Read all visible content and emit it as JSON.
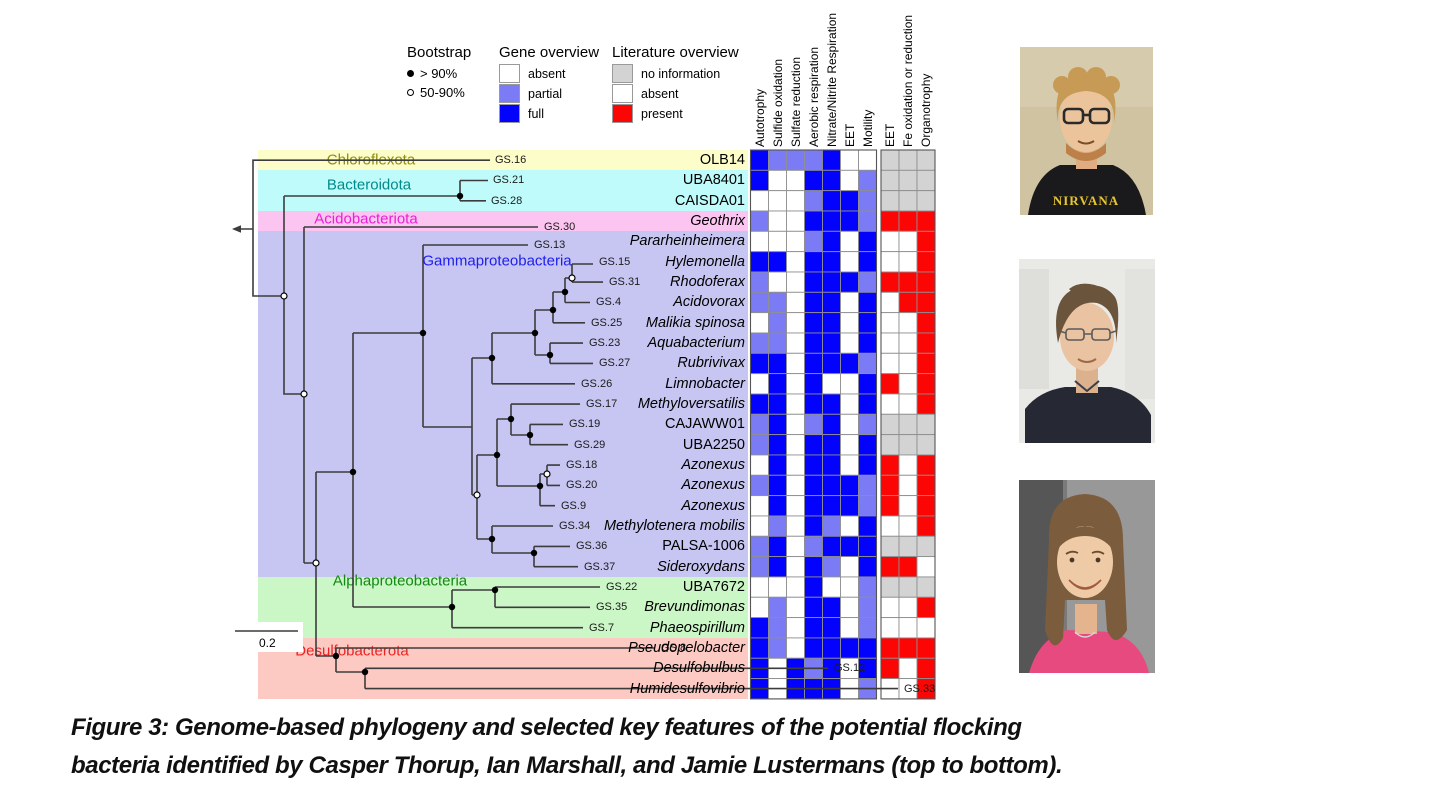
{
  "figure": {
    "caption": {
      "prefix": "Figure 3:",
      "line1": "Genome-based phylogeny and selected key features of the potential flocking",
      "line2": "bacteria identified by Casper Thorup, Ian Marshall, and Jamie Lustermans (top to bottom)."
    },
    "scale_bar_label": "0.2"
  },
  "legend": {
    "bootstrap": {
      "title": "Bootstrap",
      "items": [
        {
          "symbol": "filled-circle",
          "label": "> 90%"
        },
        {
          "symbol": "open-circle",
          "label": "50-90%"
        }
      ]
    },
    "gene_overview": {
      "title": "Gene overview",
      "items": [
        {
          "state": "absent",
          "color": "#ffffff"
        },
        {
          "state": "partial",
          "color": "#7b7bf5"
        },
        {
          "state": "full",
          "color": "#0202fd"
        }
      ]
    },
    "literature_overview": {
      "title": "Literature overview",
      "items": [
        {
          "state": "no information",
          "color": "#d3d3d3"
        },
        {
          "state": "absent",
          "color": "#ffffff"
        },
        {
          "state": "present",
          "color": "#fb0505"
        }
      ]
    }
  },
  "chart_data": {
    "type": "heatmap",
    "title": "Genome-based phylogeny and selected key features of potential flocking bacteria",
    "gene_columns": [
      "Autotrophy",
      "Sulfide oxidation",
      "Sulfate reduction",
      "Aerobic respiration",
      "Nitrate/Nitrite Respiration",
      "EET",
      "Motility"
    ],
    "literature_columns": [
      "EET",
      "Fe oxidation or reduction",
      "Organotrophy"
    ],
    "gene_states": {
      "f": "full",
      "p": "partial",
      "a": "absent"
    },
    "literature_states": {
      "P": "present",
      "A": "absent",
      "N": "no information"
    },
    "scale_bar": "0.2",
    "clades": [
      {
        "name": "Chloroflexota",
        "row_start": 0,
        "row_count": 1,
        "band_color": "#fdfdca",
        "label_color": "#8f8f10"
      },
      {
        "name": "Bacteroidota",
        "row_start": 1,
        "row_count": 2,
        "band_color": "#bffbfb",
        "label_color": "#008b8b"
      },
      {
        "name": "Acidobacteriota",
        "row_start": 3,
        "row_count": 1,
        "band_color": "#fcc5f1",
        "label_color": "#e81fd8"
      },
      {
        "name": "Gammaproteobacteria",
        "row_start": 4,
        "row_count": 17,
        "band_color": "#c7c5f1",
        "label_color": "#2020ee"
      },
      {
        "name": "Alphaproteobacteria",
        "row_start": 21,
        "row_count": 3,
        "band_color": "#cbf6c6",
        "label_color": "#128a12"
      },
      {
        "name": "Desulfobacterota",
        "row_start": 24,
        "row_count": 3,
        "band_color": "#fcc9c3",
        "label_color": "#ee2222"
      }
    ],
    "taxa": [
      {
        "gs": "GS.16",
        "name": "OLB14",
        "italic": false,
        "gene": [
          "f",
          "p",
          "p",
          "p",
          "f",
          "a",
          "a"
        ],
        "literature": [
          "N",
          "N",
          "N"
        ]
      },
      {
        "gs": "GS.21",
        "name": "UBA8401",
        "italic": false,
        "gene": [
          "f",
          "a",
          "a",
          "f",
          "f",
          "a",
          "p"
        ],
        "literature": [
          "N",
          "N",
          "N"
        ]
      },
      {
        "gs": "GS.28",
        "name": "CAISDA01",
        "italic": false,
        "gene": [
          "a",
          "a",
          "a",
          "p",
          "f",
          "f",
          "p"
        ],
        "literature": [
          "N",
          "N",
          "N"
        ]
      },
      {
        "gs": "GS.30",
        "name": "Geothrix",
        "italic": true,
        "gene": [
          "p",
          "a",
          "a",
          "f",
          "f",
          "f",
          "p"
        ],
        "literature": [
          "P",
          "P",
          "P"
        ]
      },
      {
        "gs": "GS.13",
        "name": "Pararheinheimera",
        "italic": true,
        "gene": [
          "a",
          "a",
          "a",
          "p",
          "f",
          "a",
          "f"
        ],
        "literature": [
          "A",
          "A",
          "P"
        ]
      },
      {
        "gs": "GS.15",
        "name": "Hylemonella",
        "italic": true,
        "gene": [
          "f",
          "f",
          "a",
          "f",
          "f",
          "a",
          "f"
        ],
        "literature": [
          "A",
          "A",
          "P"
        ]
      },
      {
        "gs": "GS.31",
        "name": "Rhodoferax",
        "italic": true,
        "gene": [
          "p",
          "a",
          "a",
          "f",
          "f",
          "f",
          "p"
        ],
        "literature": [
          "P",
          "P",
          "P"
        ]
      },
      {
        "gs": "GS.4",
        "name": "Acidovorax",
        "italic": true,
        "gene": [
          "p",
          "p",
          "a",
          "f",
          "f",
          "a",
          "f"
        ],
        "literature": [
          "A",
          "P",
          "P"
        ]
      },
      {
        "gs": "GS.25",
        "name": "Malikia spinosa",
        "italic": true,
        "gene": [
          "a",
          "p",
          "a",
          "f",
          "f",
          "a",
          "f"
        ],
        "literature": [
          "A",
          "A",
          "P"
        ]
      },
      {
        "gs": "GS.23",
        "name": "Aquabacterium",
        "italic": true,
        "gene": [
          "p",
          "p",
          "a",
          "f",
          "f",
          "a",
          "f"
        ],
        "literature": [
          "A",
          "A",
          "P"
        ]
      },
      {
        "gs": "GS.27",
        "name": "Rubrivivax",
        "italic": true,
        "gene": [
          "f",
          "f",
          "a",
          "f",
          "f",
          "f",
          "p"
        ],
        "literature": [
          "A",
          "A",
          "P"
        ]
      },
      {
        "gs": "GS.26",
        "name": "Limnobacter",
        "italic": true,
        "gene": [
          "a",
          "f",
          "a",
          "f",
          "a",
          "a",
          "f"
        ],
        "literature": [
          "P",
          "A",
          "P"
        ]
      },
      {
        "gs": "GS.17",
        "name": "Methyloversatilis",
        "italic": true,
        "gene": [
          "f",
          "f",
          "a",
          "f",
          "f",
          "a",
          "f"
        ],
        "literature": [
          "A",
          "A",
          "P"
        ]
      },
      {
        "gs": "GS.19",
        "name": "CAJAWW01",
        "italic": false,
        "gene": [
          "p",
          "f",
          "a",
          "p",
          "f",
          "a",
          "p"
        ],
        "literature": [
          "N",
          "N",
          "N"
        ]
      },
      {
        "gs": "GS.29",
        "name": "UBA2250",
        "italic": false,
        "gene": [
          "p",
          "f",
          "a",
          "f",
          "f",
          "a",
          "f"
        ],
        "literature": [
          "N",
          "N",
          "N"
        ]
      },
      {
        "gs": "GS.18",
        "name": "Azonexus",
        "italic": true,
        "gene": [
          "a",
          "f",
          "a",
          "f",
          "f",
          "a",
          "f"
        ],
        "literature": [
          "P",
          "A",
          "P"
        ]
      },
      {
        "gs": "GS.20",
        "name": "Azonexus",
        "italic": true,
        "gene": [
          "p",
          "f",
          "a",
          "f",
          "f",
          "f",
          "p"
        ],
        "literature": [
          "P",
          "A",
          "P"
        ]
      },
      {
        "gs": "GS.9",
        "name": "Azonexus",
        "italic": true,
        "gene": [
          "a",
          "f",
          "a",
          "f",
          "f",
          "f",
          "p"
        ],
        "literature": [
          "P",
          "A",
          "P"
        ]
      },
      {
        "gs": "GS.34",
        "name": "Methylotenera mobilis",
        "italic": true,
        "gene": [
          "a",
          "p",
          "a",
          "f",
          "p",
          "a",
          "f"
        ],
        "literature": [
          "A",
          "A",
          "P"
        ]
      },
      {
        "gs": "GS.36",
        "name": "PALSA-1006",
        "italic": false,
        "gene": [
          "p",
          "f",
          "a",
          "p",
          "f",
          "f",
          "f"
        ],
        "literature": [
          "N",
          "N",
          "N"
        ]
      },
      {
        "gs": "GS.37",
        "name": "Sideroxydans",
        "italic": true,
        "gene": [
          "p",
          "f",
          "a",
          "f",
          "p",
          "a",
          "f"
        ],
        "literature": [
          "P",
          "P",
          "A"
        ]
      },
      {
        "gs": "GS.22",
        "name": "UBA7672",
        "italic": false,
        "gene": [
          "a",
          "a",
          "a",
          "f",
          "a",
          "a",
          "p"
        ],
        "literature": [
          "N",
          "N",
          "N"
        ]
      },
      {
        "gs": "GS.35",
        "name": "Brevundimonas",
        "italic": true,
        "gene": [
          "a",
          "p",
          "a",
          "f",
          "f",
          "a",
          "p"
        ],
        "literature": [
          "A",
          "A",
          "P"
        ]
      },
      {
        "gs": "GS.7",
        "name": "Phaeospirillum",
        "italic": true,
        "gene": [
          "f",
          "p",
          "a",
          "f",
          "f",
          "a",
          "p"
        ],
        "literature": [
          "A",
          "A",
          "A"
        ]
      },
      {
        "gs": "GS.8",
        "name": "Pseudopelobacter",
        "italic": true,
        "gene": [
          "f",
          "p",
          "a",
          "f",
          "f",
          "f",
          "f"
        ],
        "literature": [
          "P",
          "P",
          "P"
        ]
      },
      {
        "gs": "GS.12",
        "name": "Desulfobulbus",
        "italic": true,
        "gene": [
          "f",
          "a",
          "f",
          "p",
          "f",
          "a",
          "f"
        ],
        "literature": [
          "P",
          "A",
          "P"
        ]
      },
      {
        "gs": "GS.33",
        "name": "Humidesulfovibrio",
        "italic": true,
        "gene": [
          "f",
          "a",
          "f",
          "f",
          "f",
          "a",
          "p"
        ],
        "literature": [
          "A",
          "A",
          "P"
        ]
      }
    ]
  },
  "photos": [
    {
      "person": "Casper Thorup",
      "shirt_text": "NIRVANA"
    },
    {
      "person": "Ian Marshall",
      "shirt_text": ""
    },
    {
      "person": "Jamie Lustermans",
      "shirt_text": ""
    }
  ]
}
